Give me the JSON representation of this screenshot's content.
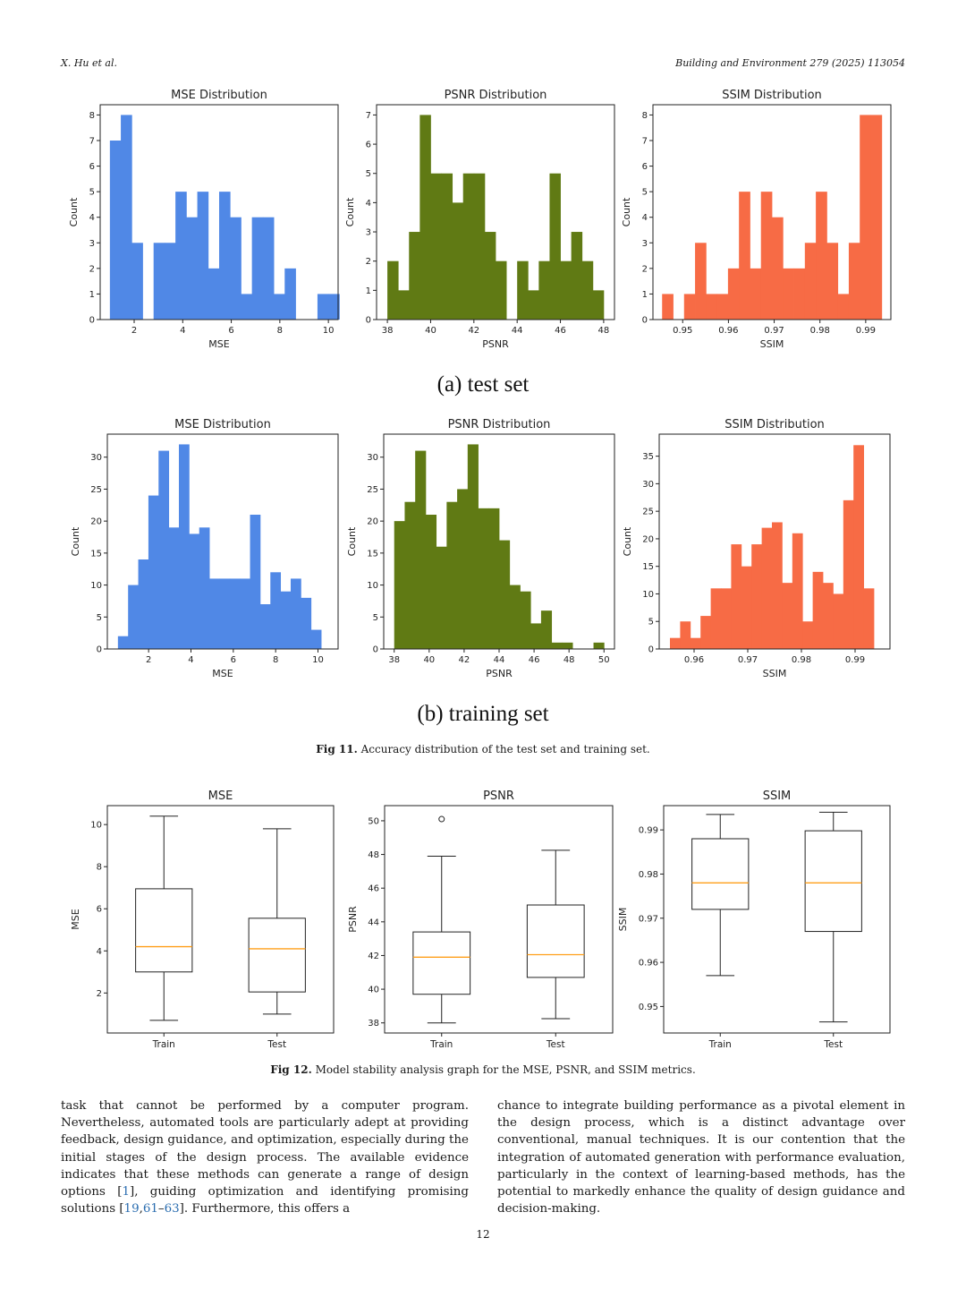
{
  "header": {
    "left": "X. Hu et al.",
    "right": "Building and Environment 279 (2025) 113054"
  },
  "figure11": {
    "subcaption_a": "(a) test set",
    "subcaption_b": "(b) training set",
    "caption_label": "Fig 11.",
    "caption_text": "Accuracy distribution of the test set and training set."
  },
  "figure12": {
    "caption_label": "Fig 12.",
    "caption_text": "Model stability analysis graph for the MSE, PSNR, and SSIM metrics."
  },
  "body": {
    "left_p1": "task that cannot be performed by a computer program. Nevertheless, automated tools are particularly adept at providing feedback, design guidance, and optimization, especially during the initial stages of the design process. The available evidence indicates that these methods can generate a range of design options [",
    "cite1": "1",
    "left_p2": "], guiding optimization and identifying promising solutions [",
    "cite2a": "19",
    "cite2b": "61",
    "cite2c": "63",
    "left_p3": "]. Furthermore, this offers a",
    "right": "chance to integrate building performance as a pivotal element in the design process, which is a distinct advantage over conventional, manual techniques. It is our contention that the integration of automated generation with performance evaluation, particularly in the context of learning-based methods, has the potential to markedly enhance the quality of design guidance and decision-making."
  },
  "page_number": "12",
  "colors": {
    "mse": "#5088e6",
    "psnr": "#607a14",
    "ssim": "#f76b45",
    "median": "#ff9f1a"
  },
  "chart_data": [
    {
      "id": "test-mse",
      "type": "bar",
      "title": "MSE Distribution",
      "xlabel": "MSE",
      "ylabel": "Count",
      "xlim": [
        0.6,
        10.4
      ],
      "ylim": [
        0,
        8.4
      ],
      "xticks": [
        2,
        4,
        6,
        8,
        10
      ],
      "yticks": [
        0,
        1,
        2,
        3,
        4,
        5,
        6,
        7,
        8
      ],
      "bin_start": 1.0,
      "bin_width": 0.45,
      "counts": [
        7,
        8,
        3,
        0,
        3,
        3,
        5,
        4,
        5,
        2,
        5,
        4,
        1,
        4,
        4,
        1,
        2,
        0,
        0,
        1,
        1
      ],
      "color": "#5088e6"
    },
    {
      "id": "test-psnr",
      "type": "bar",
      "title": "PSNR Distribution",
      "xlabel": "PSNR",
      "ylabel": "Count",
      "xlim": [
        37.5,
        48.5
      ],
      "ylim": [
        0,
        7.35
      ],
      "xticks": [
        38,
        40,
        42,
        44,
        46,
        48
      ],
      "yticks": [
        0,
        1,
        2,
        3,
        4,
        5,
        6,
        7
      ],
      "bin_start": 38.0,
      "bin_width": 0.5,
      "counts": [
        2,
        1,
        3,
        7,
        5,
        5,
        4,
        5,
        5,
        3,
        2,
        0,
        2,
        1,
        2,
        5,
        2,
        3,
        2,
        1
      ],
      "color": "#607a14"
    },
    {
      "id": "test-ssim",
      "type": "bar",
      "title": "SSIM Distribution",
      "xlabel": "SSIM",
      "ylabel": "Count",
      "xlim": [
        0.9435,
        0.9955
      ],
      "ylim": [
        0,
        8.4
      ],
      "xticks": [
        0.95,
        0.96,
        0.97,
        0.98,
        0.99
      ],
      "yticks": [
        0,
        1,
        2,
        3,
        4,
        5,
        6,
        7,
        8
      ],
      "bin_start": 0.9455,
      "bin_width": 0.0024,
      "counts": [
        1,
        0,
        1,
        3,
        1,
        1,
        2,
        5,
        2,
        5,
        4,
        2,
        2,
        3,
        5,
        3,
        1,
        3,
        8,
        8
      ],
      "color": "#f76b45"
    },
    {
      "id": "train-mse",
      "type": "bar",
      "title": "MSE Distribution",
      "xlabel": "MSE",
      "ylabel": "Count",
      "xlim": [
        0.05,
        10.95
      ],
      "ylim": [
        0,
        33.6
      ],
      "xticks": [
        2,
        4,
        6,
        8,
        10
      ],
      "yticks": [
        0,
        5,
        10,
        15,
        20,
        25,
        30
      ],
      "bin_start": 0.55,
      "bin_width": 0.48,
      "counts": [
        2,
        10,
        14,
        24,
        31,
        19,
        32,
        18,
        19,
        11,
        11,
        11,
        11,
        21,
        7,
        12,
        9,
        11,
        8,
        3
      ],
      "color": "#5088e6"
    },
    {
      "id": "train-psnr",
      "type": "bar",
      "title": "PSNR Distribution",
      "xlabel": "PSNR",
      "ylabel": "Count",
      "xlim": [
        37.4,
        50.6
      ],
      "ylim": [
        0,
        33.6
      ],
      "xticks": [
        38,
        40,
        42,
        44,
        46,
        48,
        50
      ],
      "yticks": [
        0,
        5,
        10,
        15,
        20,
        25,
        30
      ],
      "bin_start": 38.0,
      "bin_width": 0.6,
      "counts": [
        20,
        23,
        31,
        21,
        16,
        23,
        25,
        32,
        22,
        22,
        17,
        10,
        9,
        4,
        6,
        1,
        1,
        0,
        0,
        1
      ],
      "color": "#607a14"
    },
    {
      "id": "train-ssim",
      "type": "bar",
      "title": "SSIM Distribution",
      "xlabel": "SSIM",
      "ylabel": "Count",
      "xlim": [
        0.9535,
        0.9965
      ],
      "ylim": [
        0,
        39
      ],
      "xticks": [
        0.96,
        0.97,
        0.98,
        0.99
      ],
      "yticks": [
        0,
        5,
        10,
        15,
        20,
        25,
        30,
        35
      ],
      "bin_start": 0.9555,
      "bin_width": 0.0019,
      "counts": [
        2,
        5,
        2,
        6,
        11,
        11,
        19,
        15,
        19,
        22,
        23,
        12,
        21,
        5,
        14,
        12,
        10,
        27,
        37,
        11
      ],
      "color": "#f76b45"
    },
    {
      "id": "box-mse",
      "type": "box",
      "title": "MSE",
      "xlabel": "",
      "ylabel": "MSE",
      "ylim": [
        0.1,
        10.9
      ],
      "yticks": [
        2,
        4,
        6,
        8,
        10
      ],
      "categories": [
        "Train",
        "Test"
      ],
      "boxes": [
        {
          "whislo": 0.7,
          "q1": 3.0,
          "med": 4.2,
          "q3": 6.95,
          "whishi": 10.4,
          "fliers": []
        },
        {
          "whislo": 1.0,
          "q1": 2.05,
          "med": 4.1,
          "q3": 5.55,
          "whishi": 9.8,
          "fliers": []
        }
      ]
    },
    {
      "id": "box-psnr",
      "type": "box",
      "title": "PSNR",
      "xlabel": "",
      "ylabel": "PSNR",
      "ylim": [
        37.4,
        50.9
      ],
      "yticks": [
        38,
        40,
        42,
        44,
        46,
        48,
        50
      ],
      "categories": [
        "Train",
        "Test"
      ],
      "boxes": [
        {
          "whislo": 38.0,
          "q1": 39.7,
          "med": 41.9,
          "q3": 43.4,
          "whishi": 47.9,
          "fliers": [
            50.1
          ]
        },
        {
          "whislo": 38.25,
          "q1": 40.7,
          "med": 42.05,
          "q3": 45.0,
          "whishi": 48.25,
          "fliers": []
        }
      ]
    },
    {
      "id": "box-ssim",
      "type": "box",
      "title": "SSIM",
      "xlabel": "",
      "ylabel": "SSIM",
      "ylim": [
        0.944,
        0.9955
      ],
      "yticks": [
        0.95,
        0.96,
        0.97,
        0.98,
        0.99
      ],
      "categories": [
        "Train",
        "Test"
      ],
      "boxes": [
        {
          "whislo": 0.957,
          "q1": 0.972,
          "med": 0.978,
          "q3": 0.988,
          "whishi": 0.9935,
          "fliers": []
        },
        {
          "whislo": 0.9465,
          "q1": 0.967,
          "med": 0.978,
          "q3": 0.9898,
          "whishi": 0.994,
          "fliers": []
        }
      ]
    }
  ]
}
